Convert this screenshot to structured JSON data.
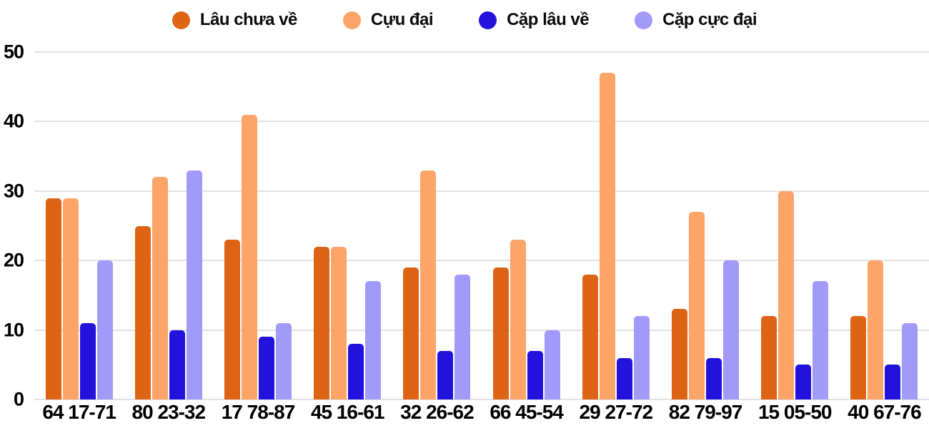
{
  "chart_data": {
    "type": "bar",
    "title": "",
    "xlabel": "",
    "ylabel": "",
    "ylim": [
      0,
      50
    ],
    "yticks": [
      0,
      10,
      20,
      30,
      40,
      50
    ],
    "grid": true,
    "legend_position": "top",
    "background_color": "#FFFFFF",
    "gridline_color": "#E2E2E2",
    "axis_text_color": "#000000",
    "categories": [
      "64 17-71",
      "80 23-32",
      "17 78-87",
      "45 16-61",
      "32 26-62",
      "66 45-54",
      "29 27-72",
      "82 79-97",
      "15 05-50",
      "40 67-76"
    ],
    "series": [
      {
        "name": "Lâu chưa về",
        "color": "#DD6414",
        "values": [
          29,
          25,
          23,
          22,
          19,
          19,
          18,
          13,
          12,
          12
        ]
      },
      {
        "name": "Cựu đại",
        "color": "#FDA469",
        "values": [
          29,
          32,
          41,
          22,
          33,
          23,
          47,
          27,
          30,
          20
        ]
      },
      {
        "name": "Cặp lâu về",
        "color": "#2312DC",
        "values": [
          11,
          10,
          9,
          8,
          7,
          7,
          6,
          6,
          5,
          5
        ]
      },
      {
        "name": "Cặp cực đại",
        "color": "#A29AF8",
        "values": [
          20,
          33,
          11,
          17,
          18,
          10,
          12,
          20,
          17,
          11
        ]
      }
    ]
  }
}
